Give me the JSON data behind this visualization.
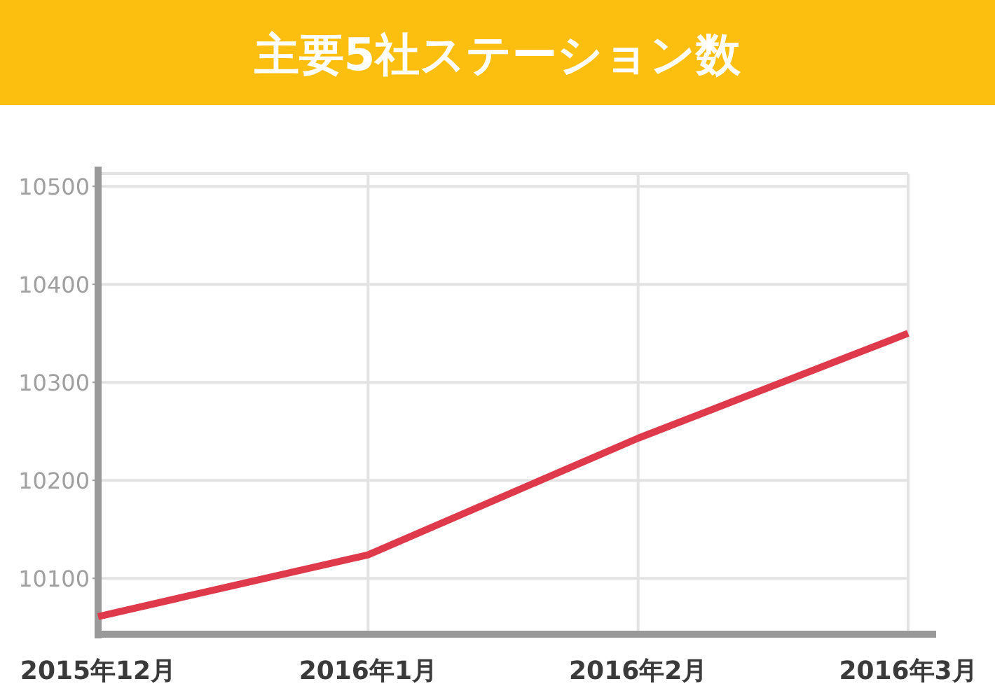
{
  "chart_data": {
    "type": "line",
    "title": "主要5社ステーション数",
    "categories": [
      "2015年12月",
      "2016年1月",
      "2016年2月",
      "2016年3月"
    ],
    "series": [
      {
        "color": "#df3a4b",
        "values": [
          10061,
          10124,
          10243,
          10350
        ]
      }
    ],
    "ylim": [
      10043,
      10513
    ],
    "yticks": [
      10100,
      10200,
      10300,
      10400,
      10500
    ],
    "grid": true,
    "marker": "none",
    "line_style": "solid"
  }
}
